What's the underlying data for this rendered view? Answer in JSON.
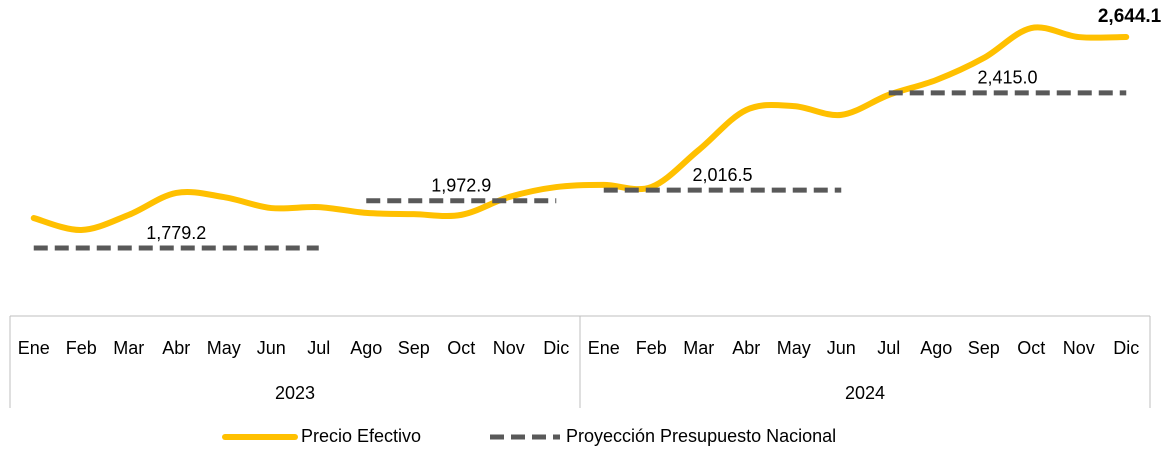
{
  "chart_data": {
    "type": "line",
    "categories": [
      "Ene",
      "Feb",
      "Mar",
      "Abr",
      "May",
      "Jun",
      "Jul",
      "Ago",
      "Sep",
      "Oct",
      "Nov",
      "Dic",
      "Ene",
      "Feb",
      "Mar",
      "Abr",
      "May",
      "Jun",
      "Jul",
      "Ago",
      "Sep",
      "Oct",
      "Nov",
      "Dic"
    ],
    "years": [
      "2023",
      "2024"
    ],
    "ylim": [
      1566,
      2796
    ],
    "series": [
      {
        "name": "Precio Efectivo",
        "color": "#ffc000",
        "style": "solid",
        "values": [
          1902,
          1853,
          1915,
          2005,
          1988,
          1943,
          1947,
          1923,
          1918,
          1915,
          1988,
          2029,
          2038,
          2029,
          2181,
          2345,
          2361,
          2325,
          2407,
          2468,
          2558,
          2681,
          2644,
          2644.1
        ],
        "value_labels": [
          null,
          null,
          null,
          null,
          null,
          null,
          null,
          null,
          null,
          null,
          null,
          null,
          null,
          null,
          null,
          null,
          null,
          null,
          null,
          null,
          null,
          null,
          null,
          "2,644.1"
        ]
      },
      {
        "name": "Proyección Presupuesto Nacional",
        "color": "#595959",
        "style": "dashed",
        "values": [
          1779.2,
          1779.2,
          1779.2,
          1779.2,
          1779.2,
          1779.2,
          1779.2,
          1972.9,
          1972.9,
          1972.9,
          1972.9,
          1972.9,
          2016.5,
          2016.5,
          2016.5,
          2016.5,
          2016.5,
          2016.5,
          2415.0,
          2415.0,
          2415.0,
          2415.0,
          2415.0,
          2415.0
        ],
        "value_labels": [
          null,
          null,
          null,
          "1,779.2",
          null,
          null,
          null,
          null,
          null,
          "1,972.9",
          null,
          null,
          null,
          null,
          null,
          "2,016.5",
          null,
          null,
          null,
          null,
          null,
          "2,415.0",
          null,
          null
        ]
      }
    ]
  }
}
